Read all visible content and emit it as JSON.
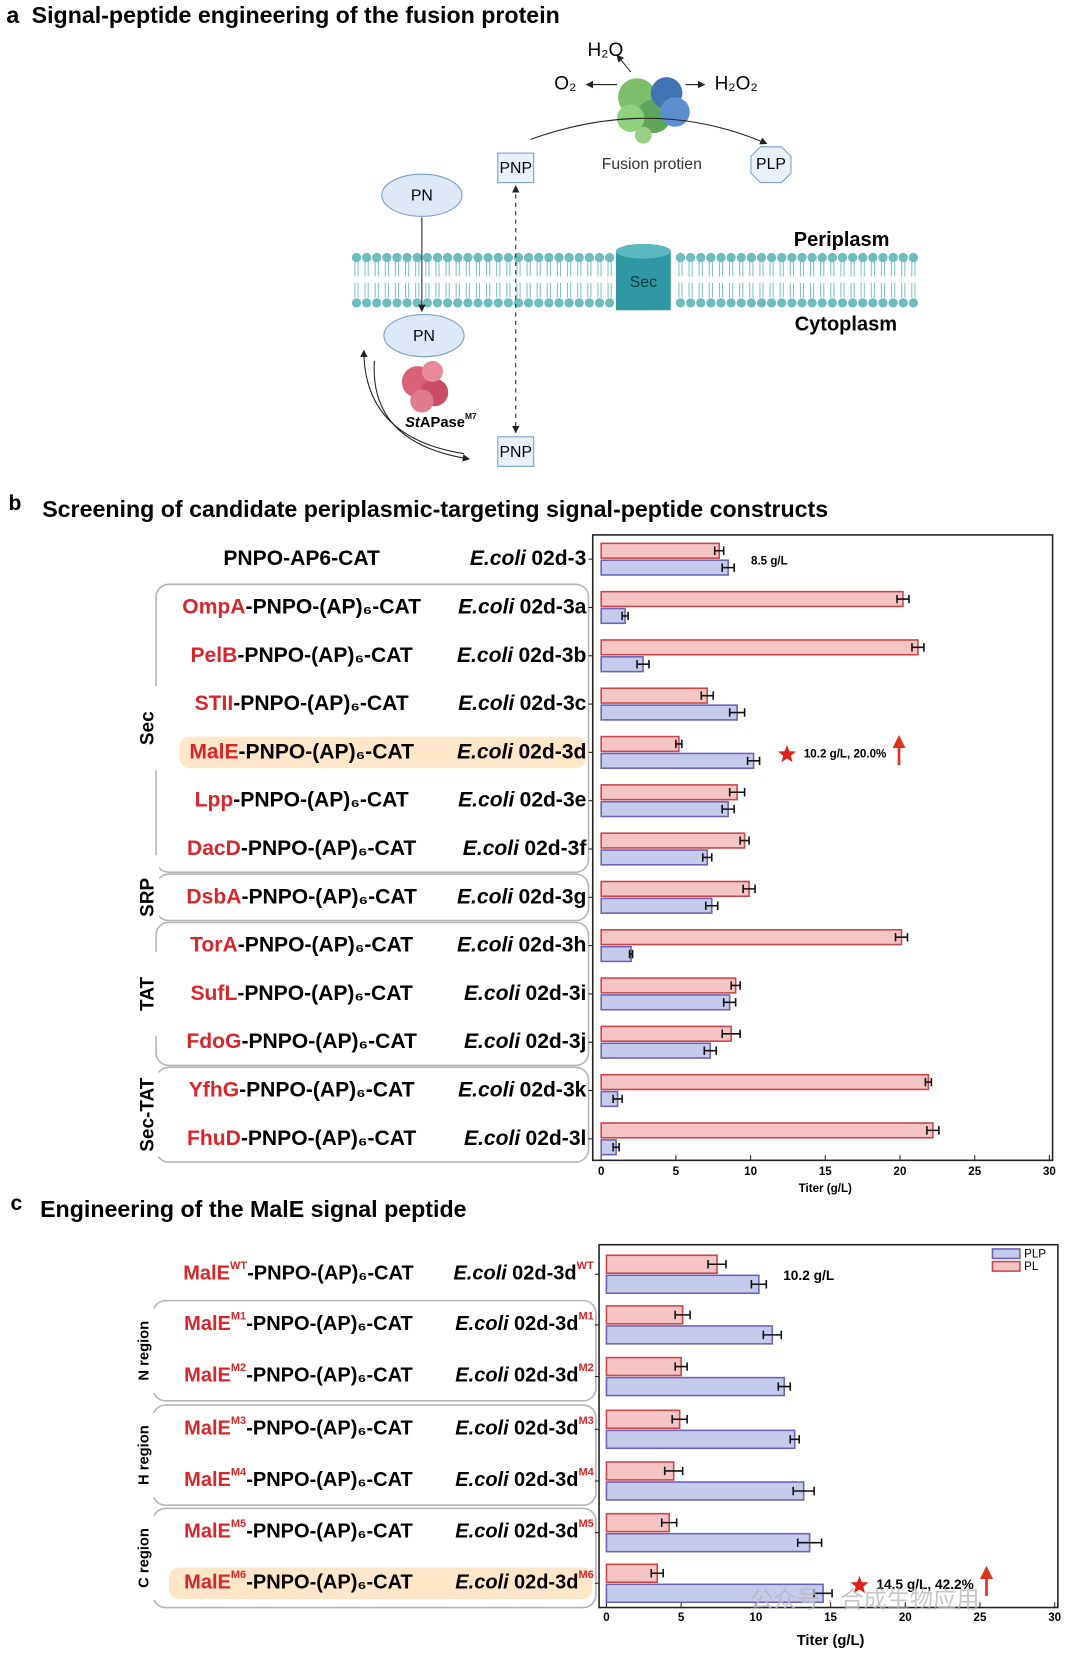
{
  "panel_a": {
    "label": "a",
    "title": "Signal-peptide engineering of the fusion protein",
    "h2o": "H₂O",
    "o2": "O₂",
    "h2o2": "H₂O₂",
    "fusion_protein": "Fusion protien",
    "pnp_top": "PNP",
    "plp": "PLP",
    "pn_top": "PN",
    "periplasm": "Periplasm",
    "sec": "Sec",
    "cytoplasm": "Cytoplasm",
    "pn_bottom": "PN",
    "enzyme": {
      "italic": "St",
      "name": "APase",
      "sup": "M7"
    },
    "pnp_bottom": "PNP"
  },
  "chart_data": [
    {
      "type": "bar",
      "orientation": "horizontal",
      "panel": "b",
      "title": "Screening of candidate periplasmic-targeting signal-peptide constructs",
      "rows": [
        {
          "construct": "PNPO-AP6-CAT",
          "species": "E.coli",
          "strain": "02d-3"
        },
        {
          "signal": "OmpA",
          "construct": "-PNPO-(AP)₆-CAT",
          "species": "E.coli",
          "strain": "02d-3a"
        },
        {
          "signal": "PelB",
          "construct": "-PNPO-(AP)₆-CAT",
          "species": "E.coli",
          "strain": "02d-3b"
        },
        {
          "signal": "STII",
          "construct": "-PNPO-(AP)₆-CAT",
          "species": "E.coli",
          "strain": "02d-3c"
        },
        {
          "signal": "MalE",
          "construct": "-PNPO-(AP)₆-CAT",
          "species": "E.coli",
          "strain": "02d-3d"
        },
        {
          "signal": "Lpp",
          "construct": "-PNPO-(AP)₆-CAT",
          "species": "E.coli",
          "strain": "02d-3e"
        },
        {
          "signal": "DacD",
          "construct": "-PNPO-(AP)₆-CAT",
          "species": "E.coli",
          "strain": "02d-3f"
        },
        {
          "signal": "DsbA",
          "construct": "-PNPO-(AP)₆-CAT",
          "species": "E.coli",
          "strain": "02d-3g"
        },
        {
          "signal": "TorA",
          "construct": "-PNPO-(AP)₆-CAT",
          "species": "E.coli",
          "strain": "02d-3h"
        },
        {
          "signal": "SufL",
          "construct": "-PNPO-(AP)₆-CAT",
          "species": "E.coli",
          "strain": "02d-3i"
        },
        {
          "signal": "FdoG",
          "construct": "-PNPO-(AP)₆-CAT",
          "species": "E.coli",
          "strain": "02d-3j"
        },
        {
          "signal": "YfhG",
          "construct": "-PNPO-(AP)₆-CAT",
          "species": "E.coli",
          "strain": "02d-3k"
        },
        {
          "signal": "FhuD",
          "construct": "-PNPO-(AP)₆-CAT",
          "species": "E.coli",
          "strain": "02d-3l"
        }
      ],
      "groups": [
        {
          "label": "Sec",
          "first": 1,
          "last": 6
        },
        {
          "label": "SRP",
          "first": 7,
          "last": 7
        },
        {
          "label": "TAT",
          "first": 8,
          "last": 10
        },
        {
          "label": "Sec-TAT",
          "first": 11,
          "last": 12
        }
      ],
      "highlight": 4,
      "series": [
        {
          "color": "#c5cceb",
          "edgecolor": "#6d63b3",
          "values": [
            8.5,
            1.6,
            2.8,
            9.1,
            10.2,
            8.5,
            7.1,
            7.4,
            2.0,
            8.6,
            7.3,
            1.1,
            1.0
          ],
          "errors": [
            0.4,
            0.2,
            0.4,
            0.5,
            0.4,
            0.4,
            0.3,
            0.4,
            0.1,
            0.4,
            0.4,
            0.3,
            0.2
          ]
        },
        {
          "color": "#f5c4c4",
          "edgecolor": "#c9474c",
          "values": [
            7.9,
            20.2,
            21.2,
            7.1,
            5.2,
            9.1,
            9.6,
            9.9,
            20.1,
            9.0,
            8.7,
            21.9,
            22.2
          ],
          "errors": [
            0.3,
            0.4,
            0.4,
            0.4,
            0.2,
            0.5,
            0.3,
            0.4,
            0.4,
            0.3,
            0.6,
            0.2,
            0.4
          ]
        }
      ],
      "annotations": [
        {
          "row": 0,
          "text": "8.5 g/L"
        },
        {
          "row": 4,
          "text": "10.2 g/L, 20.0%",
          "star": true
        }
      ],
      "xlabel": "Titer (g/L)",
      "xlim": [
        0,
        30
      ],
      "xticks": [
        0,
        5,
        10,
        15,
        20,
        25,
        30
      ]
    },
    {
      "type": "bar",
      "orientation": "horizontal",
      "panel": "c",
      "title": "Engineering of the MalE signal peptide",
      "rows": [
        {
          "signal": "MalE",
          "mutant": "WT",
          "construct": "-PNPO-(AP)₆-CAT",
          "species": "E.coli",
          "strain": "02d-3d",
          "strain_sup": "WT"
        },
        {
          "signal": "MalE",
          "mutant": "M1",
          "construct": "-PNPO-(AP)₆-CAT",
          "species": "E.coli",
          "strain": "02d-3d",
          "strain_sup": "M1"
        },
        {
          "signal": "MalE",
          "mutant": "M2",
          "construct": "-PNPO-(AP)₆-CAT",
          "species": "E.coli",
          "strain": "02d-3d",
          "strain_sup": "M2"
        },
        {
          "signal": "MalE",
          "mutant": "M3",
          "construct": "-PNPO-(AP)₆-CAT",
          "species": "E.coli",
          "strain": "02d-3d",
          "strain_sup": "M3"
        },
        {
          "signal": "MalE",
          "mutant": "M4",
          "construct": "-PNPO-(AP)₆-CAT",
          "species": "E.coli",
          "strain": "02d-3d",
          "strain_sup": "M4"
        },
        {
          "signal": "MalE",
          "mutant": "M5",
          "construct": "-PNPO-(AP)₆-CAT",
          "species": "E.coli",
          "strain": "02d-3d",
          "strain_sup": "M5"
        },
        {
          "signal": "MalE",
          "mutant": "M6",
          "construct": "-PNPO-(AP)₆-CAT",
          "species": "E.coli",
          "strain": "02d-3d",
          "strain_sup": "M6"
        }
      ],
      "groups": [
        {
          "label": "N region",
          "first": 1,
          "last": 2
        },
        {
          "label": "H region",
          "first": 3,
          "last": 4
        },
        {
          "label": "C region",
          "first": 5,
          "last": 6
        }
      ],
      "highlight": 6,
      "series": [
        {
          "name": "PLP",
          "color": "#c5cceb",
          "edgecolor": "#6d63b3",
          "values": [
            10.2,
            11.1,
            11.9,
            12.6,
            13.2,
            13.6,
            14.5
          ],
          "errors": [
            0.5,
            0.6,
            0.4,
            0.3,
            0.7,
            0.8,
            0.6
          ]
        },
        {
          "name": "PL",
          "color": "#f5c4c4",
          "edgecolor": "#c9474c",
          "values": [
            7.4,
            5.1,
            5.0,
            4.9,
            4.5,
            4.2,
            3.4
          ],
          "errors": [
            0.6,
            0.5,
            0.4,
            0.5,
            0.6,
            0.5,
            0.4
          ]
        }
      ],
      "annotations": [
        {
          "row": 0,
          "text": "10.2 g/L"
        },
        {
          "row": 6,
          "text": "14.5 g/L, 42.2%",
          "star": true
        }
      ],
      "legend": "upper right",
      "xlabel": "Titer (g/L)",
      "xlim": [
        0,
        30
      ],
      "xticks": [
        0,
        5,
        10,
        15,
        20,
        25,
        30
      ]
    }
  ],
  "watermark": "公众号 · 合成生物应用"
}
